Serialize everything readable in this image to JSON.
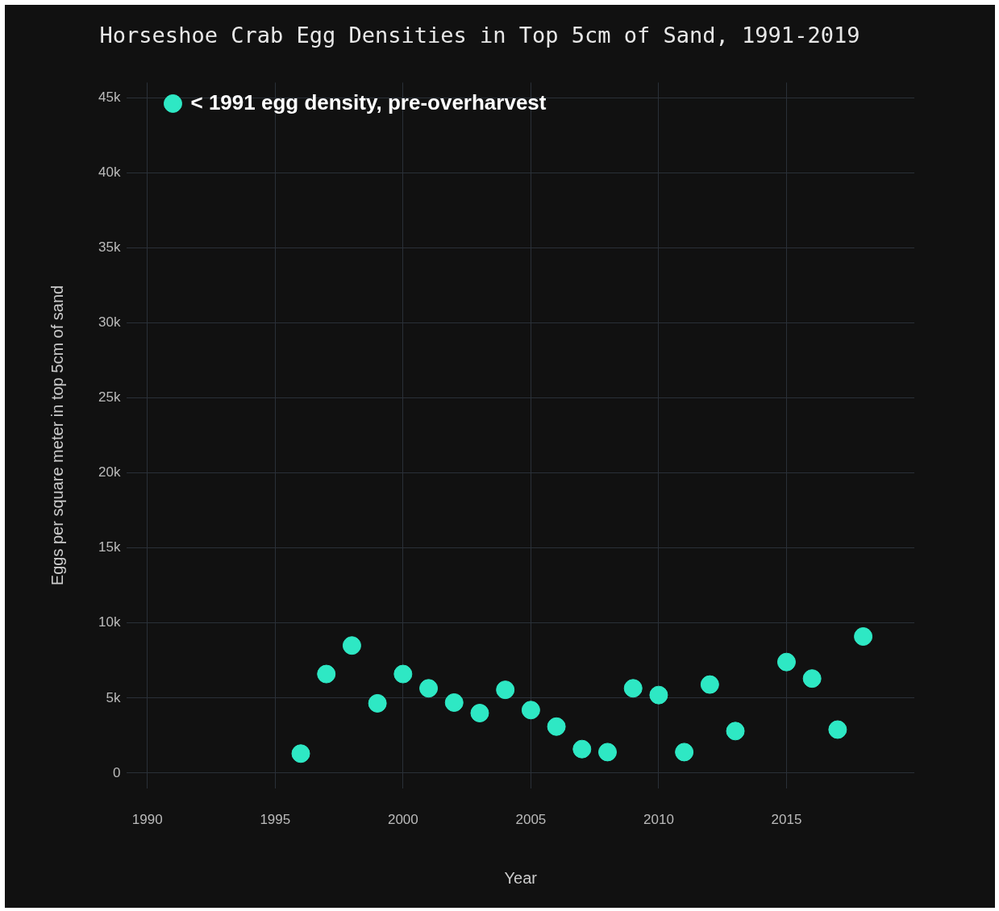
{
  "chart_data": {
    "type": "scatter",
    "title": "Horseshoe Crab Egg Densities in Top 5cm of Sand, 1991-2019",
    "xlabel": "Year",
    "ylabel": "Eggs per square meter in top 5cm of sand",
    "x": [
      1991,
      1996,
      1997,
      1998,
      1999,
      2000,
      2001,
      2002,
      2003,
      2004,
      2005,
      2006,
      2007,
      2008,
      2009,
      2010,
      2011,
      2012,
      2013,
      2015,
      2016,
      2017,
      2018
    ],
    "series": [
      {
        "color": "#2ee8c4",
        "values": [
          44600,
          1300,
          6600,
          8500,
          4650,
          6600,
          5650,
          4700,
          4000,
          5550,
          4200,
          3100,
          1600,
          1400,
          5650,
          5200,
          1400,
          5900,
          2800,
          7400,
          6300,
          2900,
          9100
        ]
      }
    ],
    "annotations": [
      {
        "text": "< 1991 egg density, pre-overharvest",
        "x": 1991,
        "y": 44600
      }
    ],
    "xlim": [
      1989.2,
      2020
    ],
    "xticks": [
      1990,
      1995,
      2000,
      2005,
      2010,
      2015
    ],
    "ylim": [
      -1000,
      46000
    ],
    "yticks": [
      {
        "value": 0,
        "label": "0"
      },
      {
        "value": 5000,
        "label": "5k"
      },
      {
        "value": 10000,
        "label": "10k"
      },
      {
        "value": 15000,
        "label": "15k"
      },
      {
        "value": 20000,
        "label": "20k"
      },
      {
        "value": 25000,
        "label": "25k"
      },
      {
        "value": 30000,
        "label": "30k"
      },
      {
        "value": 35000,
        "label": "35k"
      },
      {
        "value": 40000,
        "label": "40k"
      },
      {
        "value": 45000,
        "label": "45k"
      }
    ],
    "grid": true,
    "legend": false,
    "marker": "circle"
  }
}
